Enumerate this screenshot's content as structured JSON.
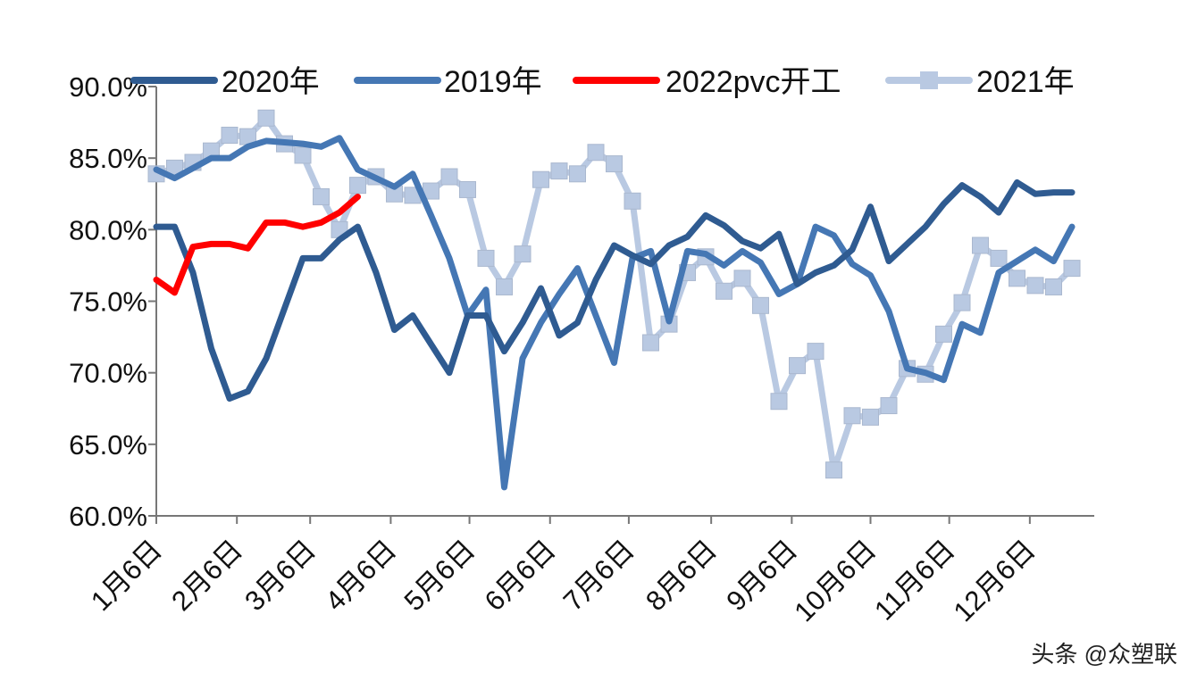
{
  "chart_data": {
    "type": "line",
    "title": "",
    "xlabel": "",
    "ylabel": "",
    "ylim": [
      60,
      90
    ],
    "yticks": [
      "60.0%",
      "65.0%",
      "70.0%",
      "75.0%",
      "80.0%",
      "85.0%",
      "90.0%"
    ],
    "ytick_values": [
      60,
      65,
      70,
      75,
      80,
      85,
      90
    ],
    "xtick_labels": [
      "1月6日",
      "2月6日",
      "3月6日",
      "4月6日",
      "5月6日",
      "6月6日",
      "7月6日",
      "8月6日",
      "9月6日",
      "10月6日",
      "11月6日",
      "12月6日"
    ],
    "xtick_weeks": [
      0,
      4.4,
      8.4,
      12.8,
      17.1,
      21.5,
      25.8,
      30.3,
      34.7,
      39,
      43.3,
      47.7
    ],
    "x_unit": "week index",
    "legend_position": "top",
    "grid": false,
    "series": [
      {
        "name": "2020年",
        "color": "#2F5B91",
        "marker": "none",
        "values": [
          80.2,
          80.2,
          77,
          71.7,
          68.2,
          68.7,
          71,
          74.5,
          78,
          78,
          79.3,
          80.2,
          77,
          73,
          74,
          72,
          70,
          74,
          74,
          71.5,
          73.5,
          75.9,
          72.6,
          73.5,
          76.5,
          78.9,
          78.2,
          77.6,
          78.9,
          79.5,
          81,
          80.3,
          79.2,
          78.7,
          79.7,
          76.2,
          77,
          77.5,
          78.6,
          81.6,
          77.8,
          79,
          80.2,
          81.8,
          83.1,
          82.3,
          81.2,
          83.3,
          82.5,
          82.6,
          82.6
        ]
      },
      {
        "name": "2019年",
        "color": "#4577B4",
        "marker": "none",
        "values": [
          84.2,
          83.6,
          84.3,
          85,
          85,
          85.8,
          86.2,
          86.1,
          86,
          85.8,
          86.4,
          84.2,
          83.6,
          83,
          83.9,
          81,
          78,
          74,
          75.8,
          62,
          71,
          73.5,
          75.5,
          77.3,
          74,
          70.7,
          78,
          78.5,
          73.6,
          78.5,
          78.3,
          77.5,
          78.5,
          77.7,
          75.5,
          76.2,
          80.2,
          79.6,
          77.6,
          76.8,
          74.3,
          70.3,
          70,
          69.5,
          73.4,
          72.8,
          77,
          77.8,
          78.6,
          77.8,
          80.2
        ]
      },
      {
        "name": "2022pvc开工",
        "color": "#FF0000",
        "marker": "none",
        "values": [
          76.5,
          75.6,
          78.8,
          79,
          79,
          78.7,
          80.5,
          80.5,
          80.2,
          80.5,
          81.2,
          82.3
        ]
      },
      {
        "name": "2021年",
        "color": "#B9C9E2",
        "marker": "square",
        "values": [
          83.9,
          84.3,
          84.7,
          85.5,
          86.6,
          86.5,
          87.8,
          86,
          85.2,
          82.3,
          80,
          83.1,
          83.7,
          82.5,
          82.4,
          82.7,
          83.7,
          82.8,
          78,
          76,
          78.3,
          83.5,
          84.1,
          83.9,
          85.4,
          84.6,
          82,
          72.1,
          73.4,
          77,
          78.1,
          75.7,
          76.6,
          74.7,
          68,
          70.5,
          71.5,
          63.2,
          67,
          66.9,
          67.7,
          70.3,
          69.9,
          72.7,
          74.9,
          78.9,
          78,
          76.6,
          76.1,
          76,
          77.3
        ]
      }
    ]
  },
  "watermark": "头条 @众塑联"
}
